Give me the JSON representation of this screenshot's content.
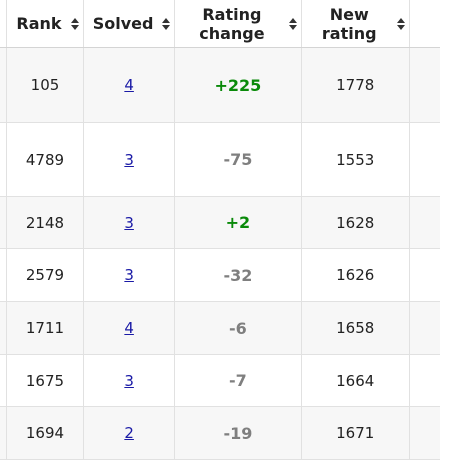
{
  "table": {
    "headers": {
      "rank": "Rank",
      "solved": "Solved",
      "rating_change_line1": "Rating",
      "rating_change_line2": "change",
      "new_rating_line1": "New",
      "new_rating_line2": "rating"
    },
    "rows": [
      {
        "rank": "105",
        "solved": "4",
        "rating_change": "+225",
        "new_rating": "1778"
      },
      {
        "rank": "4789",
        "solved": "3",
        "rating_change": "-75",
        "new_rating": "1553"
      },
      {
        "rank": "2148",
        "solved": "3",
        "rating_change": "+2",
        "new_rating": "1628"
      },
      {
        "rank": "2579",
        "solved": "3",
        "rating_change": "-32",
        "new_rating": "1626"
      },
      {
        "rank": "1711",
        "solved": "4",
        "rating_change": "-6",
        "new_rating": "1658"
      },
      {
        "rank": "1675",
        "solved": "3",
        "rating_change": "-7",
        "new_rating": "1664"
      },
      {
        "rank": "1694",
        "solved": "2",
        "rating_change": "-19",
        "new_rating": "1671"
      }
    ]
  },
  "colors": {
    "positive_change": "#0a8a0a",
    "negative_change": "#7f7f7f",
    "link": "#1a1aa6",
    "row_stripe": "#f7f7f7",
    "border": "#e1e1e1"
  },
  "icons": {
    "sort": "sort-arrows-icon"
  }
}
